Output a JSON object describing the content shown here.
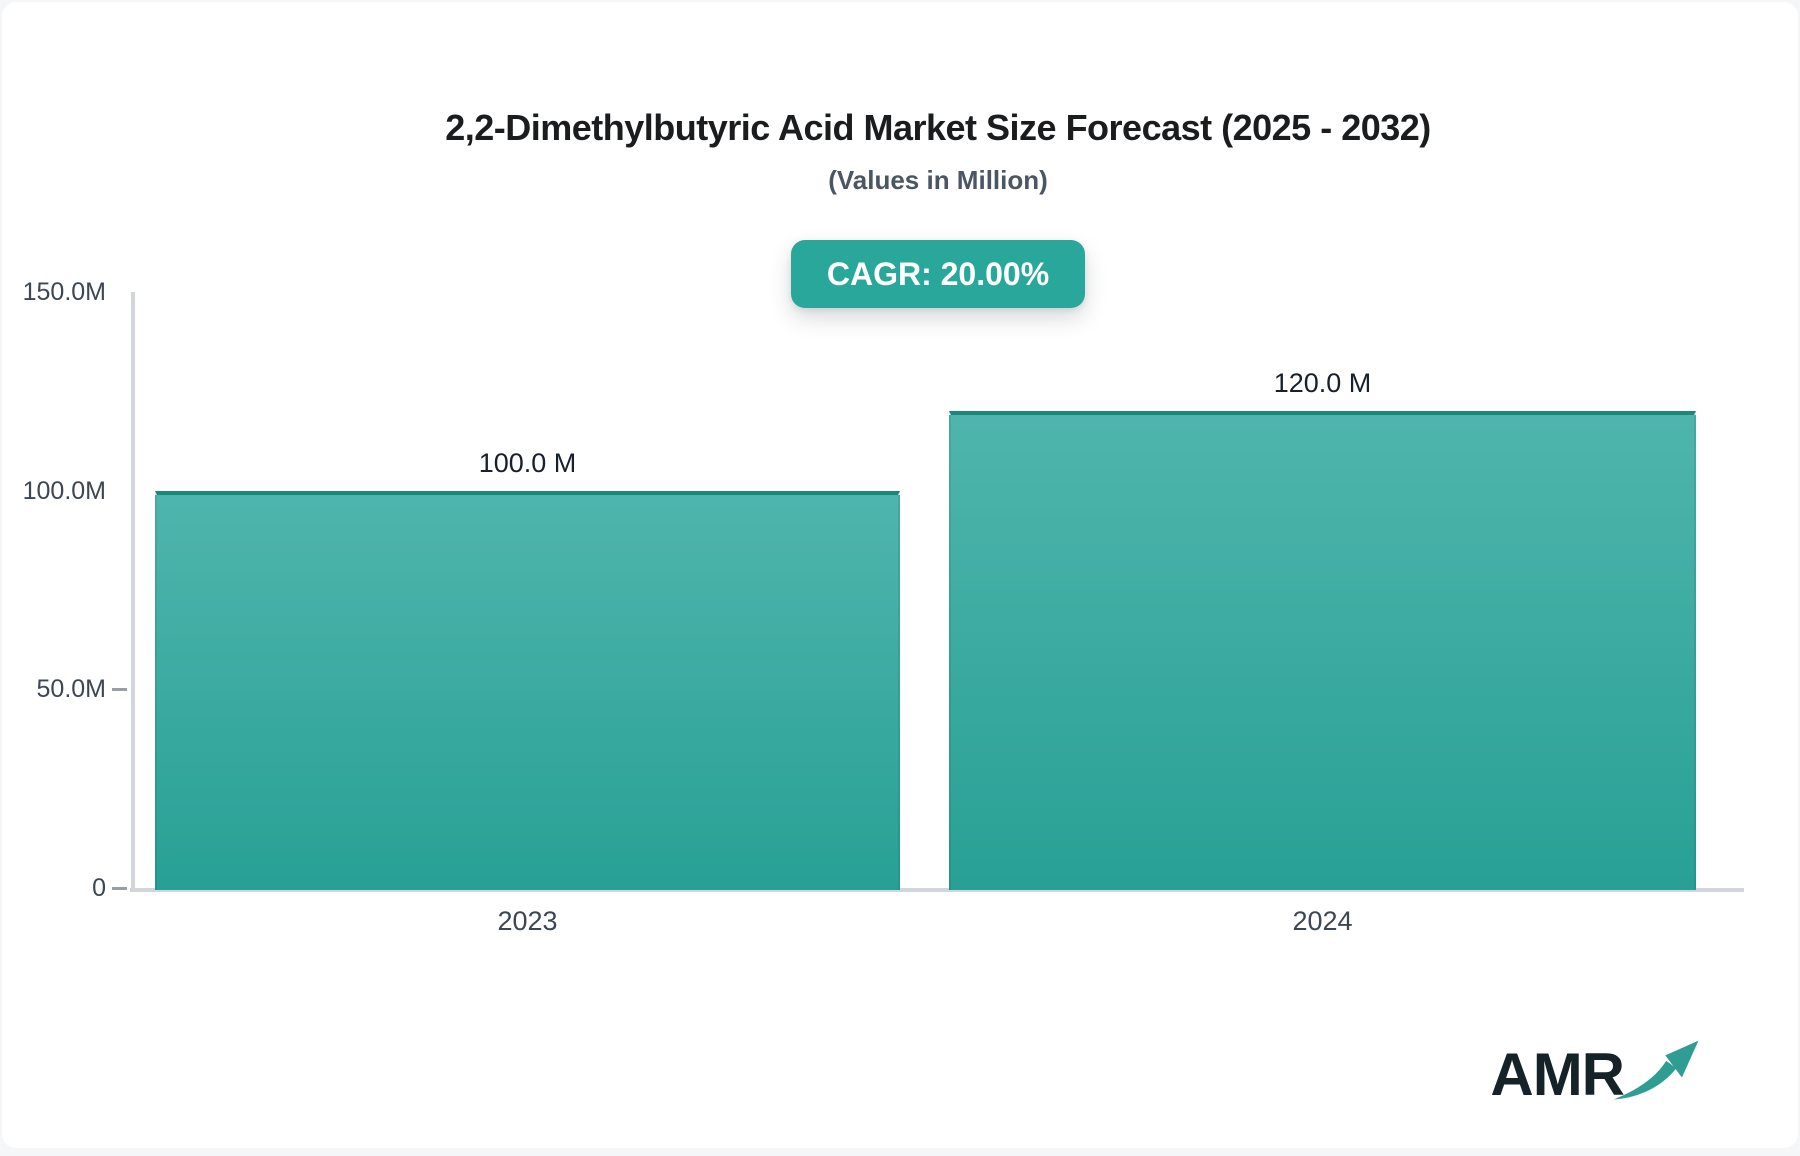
{
  "header": {
    "title": "2,2-Dimethylbutyric Acid Market Size Forecast (2025 - 2032)",
    "subtitle": "(Values in Million)",
    "cagr_badge": "CAGR: 20.00%"
  },
  "chart_data": {
    "type": "bar",
    "title": "2,2-Dimethylbutyric Acid Market Size Forecast (2025 - 2032)",
    "subtitle": "(Values in Million)",
    "categories": [
      "2023",
      "2024"
    ],
    "values": [
      100.0,
      120.0
    ],
    "bar_labels": [
      "100.0 M",
      "120.0 M"
    ],
    "cagr": "20.00%",
    "xlabel": "",
    "ylabel": "",
    "ylim": [
      0,
      150
    ],
    "yticks": [
      {
        "label": "150.0M",
        "value": 150,
        "dash": false
      },
      {
        "label": "100.0M",
        "value": 100,
        "dash": false
      },
      {
        "label": "50.0M",
        "value": 50,
        "dash": true
      },
      {
        "label": "0",
        "value": 0,
        "dash": true
      }
    ],
    "grid": false,
    "legend": false
  },
  "logo": {
    "text": "AMR",
    "arrow_icon": "trend-up-arrow"
  },
  "colors": {
    "accent_teal": "#2aa79b",
    "bar_gradient_top": "#4fb5ac",
    "bar_gradient_bottom": "#28a095",
    "bar_top_edge": "#1b867c",
    "axis_line": "#d2d5db",
    "tick_text": "#3d4653",
    "title_text": "#1b1c1e",
    "subtitle_text": "#4b5563",
    "value_text": "#17202b",
    "logo_text": "#152329",
    "logo_arrow": "#2f9d94"
  }
}
